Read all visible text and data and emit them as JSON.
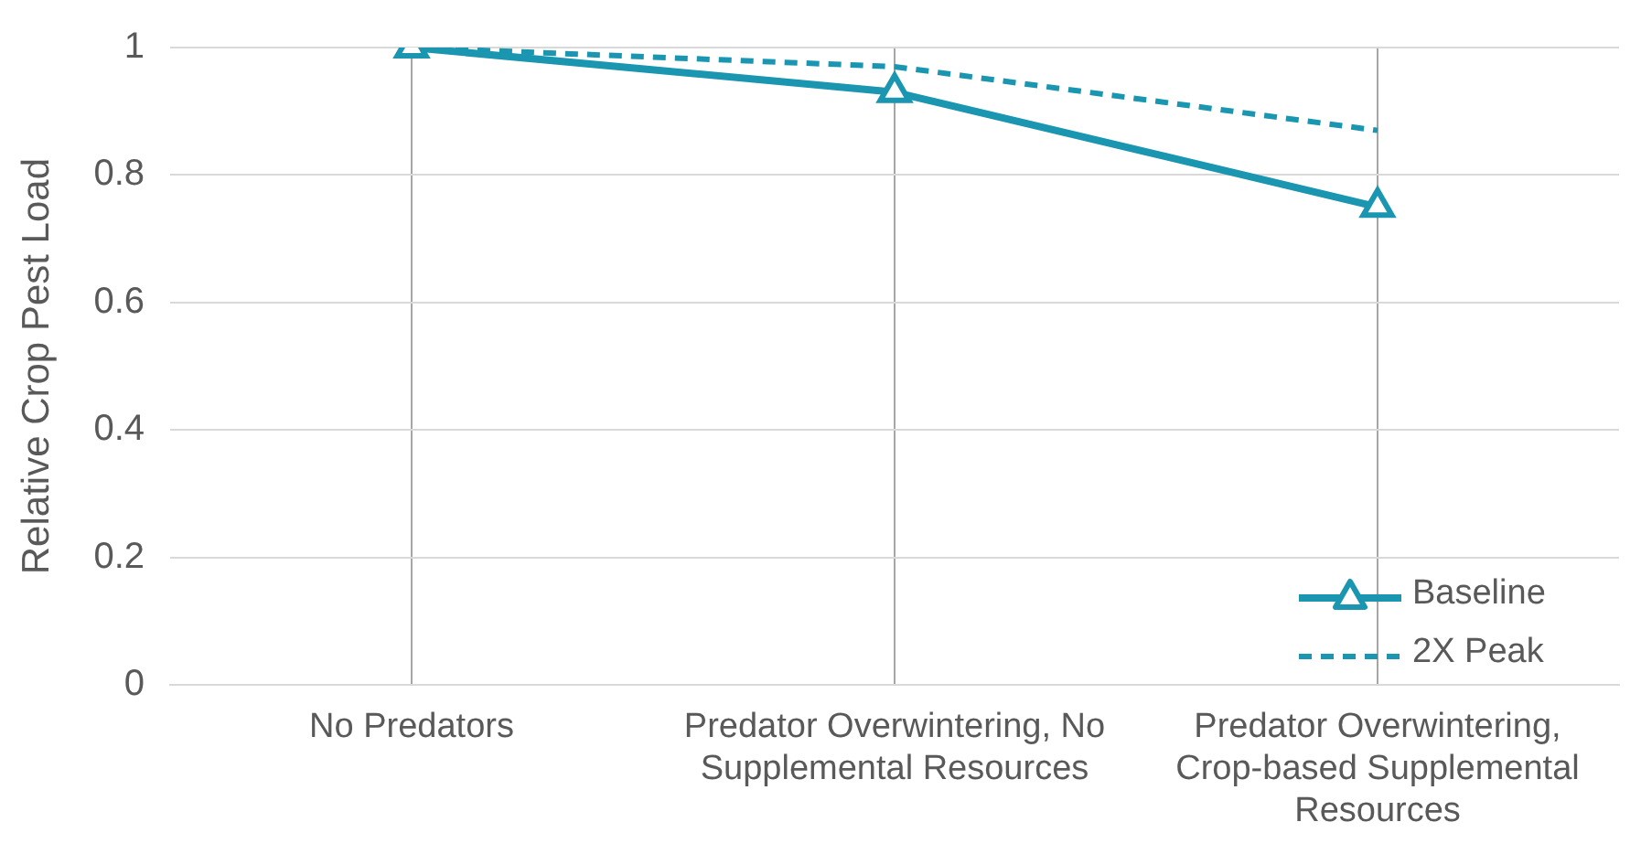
{
  "chart_data": {
    "type": "line",
    "ylabel": "Relative Crop Pest Load",
    "categories": [
      "No Predators",
      "Predator Overwintering, No Supplemental Resources",
      "Predator Overwintering, Crop-based Supplemental Resources"
    ],
    "series": [
      {
        "name": "Baseline",
        "color": "#1a96b0",
        "values": [
          1,
          0.93,
          0.75
        ],
        "marker": "triangle",
        "line_style": "solid"
      },
      {
        "name": "2X Peak",
        "color": "#1a96b0",
        "values": [
          1,
          0.97,
          0.87
        ],
        "marker": "none",
        "line_style": "dashed"
      }
    ],
    "ylim": [
      0,
      1
    ],
    "yticks": [
      0,
      0.2,
      0.4,
      0.6,
      0.8,
      1
    ],
    "grid": true,
    "legend": "bottom right"
  }
}
